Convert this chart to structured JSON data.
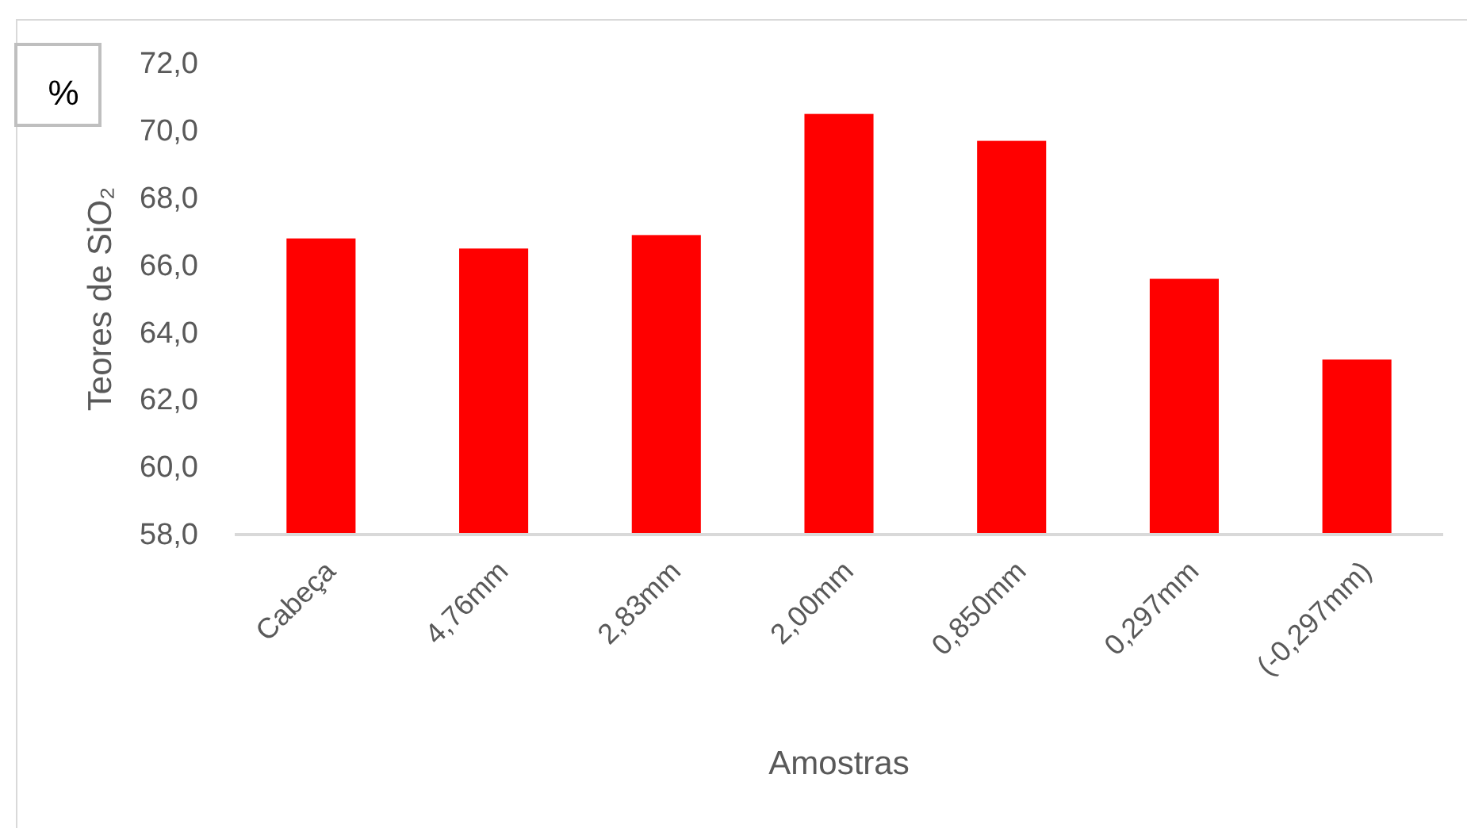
{
  "chart_data": {
    "type": "bar",
    "xlabel": "Amostras",
    "ylabel": "Teores de SiO₂",
    "annotations": [
      "%"
    ],
    "categories": [
      "Cabeça",
      "4,76mm",
      "2,83mm",
      "2,00mm",
      "0,850mm",
      "0,297mm",
      "(-0,297mm)"
    ],
    "values": [
      66.8,
      66.5,
      66.9,
      70.5,
      69.7,
      65.6,
      63.2
    ],
    "color": "#ff0000",
    "ylim": [
      58,
      72
    ],
    "yticks": [
      {
        "value": 58,
        "label": "58,0"
      },
      {
        "value": 60,
        "label": "60,0"
      },
      {
        "value": 62,
        "label": "62,0"
      },
      {
        "value": 64,
        "label": "64,0"
      },
      {
        "value": 66,
        "label": "66,0"
      },
      {
        "value": 68,
        "label": "68,0"
      },
      {
        "value": 70,
        "label": "70,0"
      },
      {
        "value": 72,
        "label": "72,0"
      }
    ],
    "grid": false
  }
}
